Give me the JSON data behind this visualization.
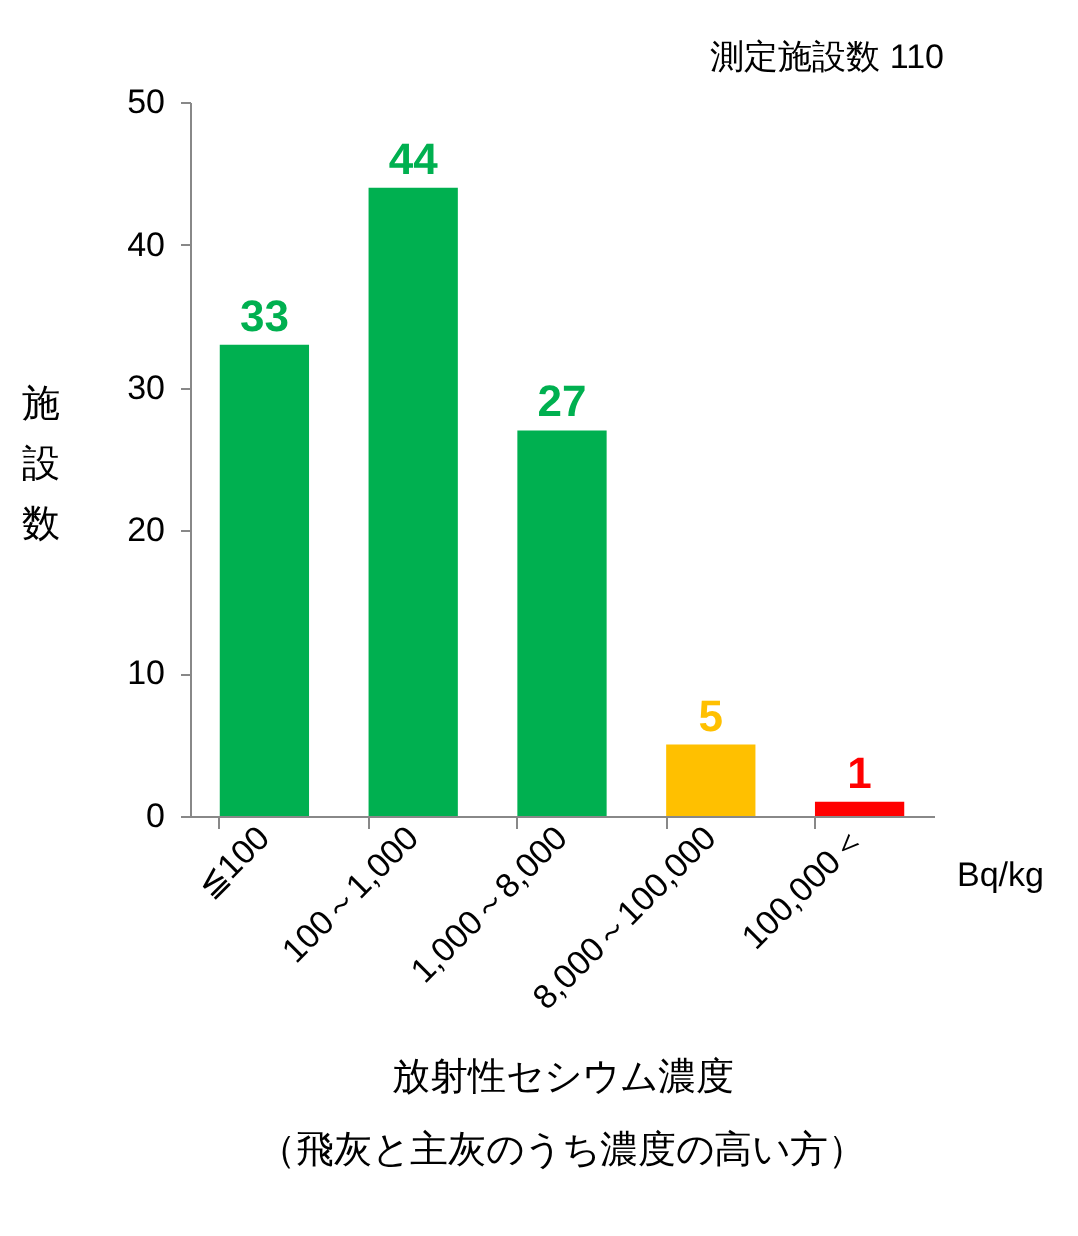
{
  "chart_data": {
    "type": "bar",
    "xlabel": "放射性セシウム濃度",
    "ylabel": "施設数",
    "categories": [
      "≦100",
      "100～1,000",
      "1,000～8,000",
      "8,000～100,000",
      "100,000＜"
    ],
    "values": [
      33,
      44,
      27,
      5,
      1
    ],
    "colors": [
      "#00b050",
      "#00b050",
      "#00b050",
      "#ffc000",
      "#ff0000"
    ],
    "ylim": [
      0,
      50
    ],
    "yticks": [
      0,
      10,
      20,
      30,
      40,
      50
    ],
    "grid": false,
    "data_labels": true,
    "annotations": [
      "測定施設数  110",
      "Bq/kg",
      "（飛灰と主灰のうち濃度の高い方）"
    ]
  }
}
